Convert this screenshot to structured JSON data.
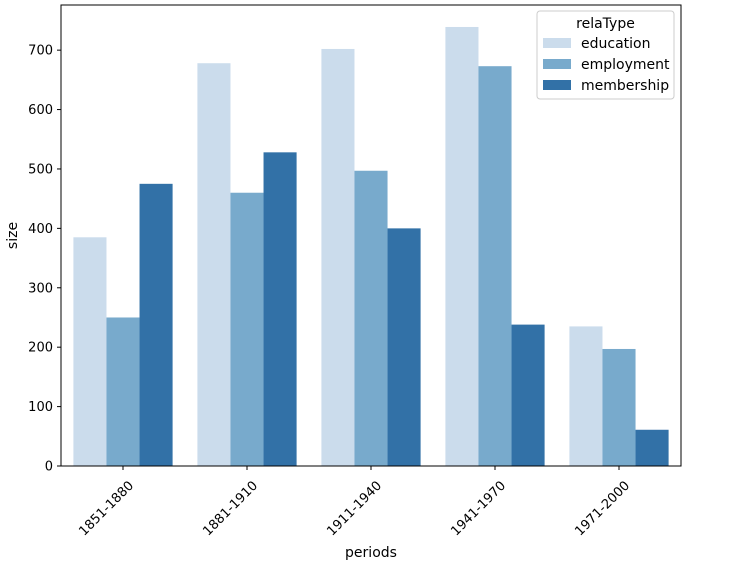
{
  "chart_data": {
    "type": "bar",
    "title": "",
    "xlabel": "periods",
    "ylabel": "size",
    "categories": [
      "1851-1880",
      "1881-1910",
      "1911-1940",
      "1941-1970",
      "1971-2000"
    ],
    "series": [
      {
        "name": "education",
        "color": "#cbdcec",
        "values": [
          385,
          678,
          702,
          739,
          235
        ]
      },
      {
        "name": "employment",
        "color": "#78aacc",
        "values": [
          250,
          460,
          497,
          673,
          197
        ]
      },
      {
        "name": "membership",
        "color": "#3271a7",
        "values": [
          475,
          528,
          400,
          238,
          61
        ]
      }
    ],
    "ylim": [
      0,
      776
    ],
    "yticks": [
      0,
      100,
      200,
      300,
      400,
      500,
      600,
      700
    ],
    "grid": false,
    "legend": {
      "title": "relaType",
      "position": "top-right"
    }
  }
}
